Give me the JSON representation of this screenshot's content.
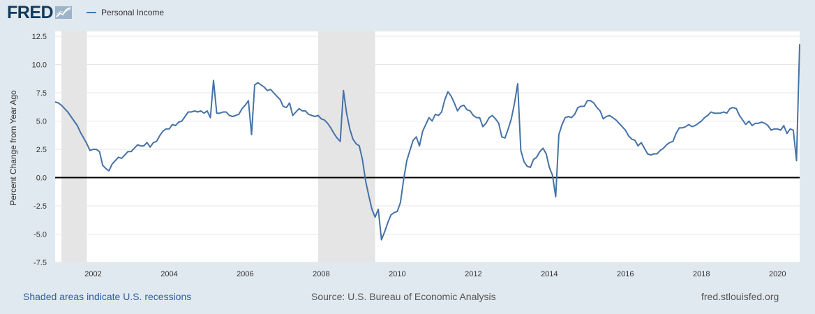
{
  "header": {
    "logo_text": "FRED",
    "logo_icon": "chart-line-icon",
    "legend_label": "Personal Income"
  },
  "footer": {
    "recessions_note": "Shaded areas indicate U.S. recessions",
    "source": "Source: U.S. Bureau of Economic Analysis",
    "site": "fred.stlouisfed.org"
  },
  "colors": {
    "background": "#e1e9f0",
    "plot_background": "#ffffff",
    "series_line": "#4572a7",
    "recession_shade": "#e5e5e5",
    "zero_line": "#000000",
    "gridline": "#e6e6e6"
  },
  "chart_data": {
    "type": "line",
    "title": "",
    "xlabel": "",
    "ylabel": "Percent Change from Year Ago",
    "ylim": [
      -7.5,
      12.5
    ],
    "y_ticks": [
      12.5,
      10.0,
      7.5,
      5.0,
      2.5,
      0.0,
      -2.5,
      -5.0,
      -7.5
    ],
    "y_tick_labels": [
      "12.5",
      "10.0",
      "7.5",
      "5.0",
      "2.5",
      "0.0",
      "-2.5",
      "-5.0",
      "-7.5"
    ],
    "x_range": [
      "2001-01",
      "2020-04"
    ],
    "x_tick_labels": [
      "2002",
      "2004",
      "2006",
      "2008",
      "2010",
      "2012",
      "2014",
      "2016",
      "2018",
      "2020"
    ],
    "grid": true,
    "legend": "top-left",
    "recessions": [
      {
        "start": "2001-03",
        "end": "2001-11"
      },
      {
        "start": "2007-12",
        "end": "2009-06"
      }
    ],
    "series": [
      {
        "name": "Personal Income",
        "points": [
          [
            "2001-01",
            6.7
          ],
          [
            "2001-02",
            6.6
          ],
          [
            "2001-03",
            6.4
          ],
          [
            "2001-04",
            6.1
          ],
          [
            "2001-05",
            5.8
          ],
          [
            "2001-06",
            5.4
          ],
          [
            "2001-07",
            5.0
          ],
          [
            "2001-08",
            4.6
          ],
          [
            "2001-09",
            4.0
          ],
          [
            "2001-10",
            3.5
          ],
          [
            "2001-11",
            3.0
          ],
          [
            "2001-12",
            2.4
          ],
          [
            "2002-01",
            2.5
          ],
          [
            "2002-02",
            2.5
          ],
          [
            "2002-03",
            2.3
          ],
          [
            "2002-04",
            1.1
          ],
          [
            "2002-05",
            0.8
          ],
          [
            "2002-06",
            0.6
          ],
          [
            "2002-07",
            1.2
          ],
          [
            "2002-08",
            1.5
          ],
          [
            "2002-09",
            1.8
          ],
          [
            "2002-10",
            1.7
          ],
          [
            "2002-11",
            2.0
          ],
          [
            "2002-12",
            2.3
          ],
          [
            "2003-01",
            2.3
          ],
          [
            "2003-02",
            2.6
          ],
          [
            "2003-03",
            2.9
          ],
          [
            "2003-04",
            2.8
          ],
          [
            "2003-05",
            2.8
          ],
          [
            "2003-06",
            3.1
          ],
          [
            "2003-07",
            2.7
          ],
          [
            "2003-08",
            3.1
          ],
          [
            "2003-09",
            3.2
          ],
          [
            "2003-10",
            3.7
          ],
          [
            "2003-11",
            4.1
          ],
          [
            "2003-12",
            4.3
          ],
          [
            "2004-01",
            4.3
          ],
          [
            "2004-02",
            4.7
          ],
          [
            "2004-03",
            4.6
          ],
          [
            "2004-04",
            4.9
          ],
          [
            "2004-05",
            5.0
          ],
          [
            "2004-06",
            5.4
          ],
          [
            "2004-07",
            5.8
          ],
          [
            "2004-08",
            5.8
          ],
          [
            "2004-09",
            5.9
          ],
          [
            "2004-10",
            5.8
          ],
          [
            "2004-11",
            5.9
          ],
          [
            "2004-12",
            5.7
          ],
          [
            "2005-01",
            5.9
          ],
          [
            "2005-02",
            5.3
          ],
          [
            "2005-03",
            8.6
          ],
          [
            "2005-04",
            5.7
          ],
          [
            "2005-05",
            5.7
          ],
          [
            "2005-06",
            5.8
          ],
          [
            "2005-07",
            5.8
          ],
          [
            "2005-08",
            5.5
          ],
          [
            "2005-09",
            5.4
          ],
          [
            "2005-10",
            5.5
          ],
          [
            "2005-11",
            5.6
          ],
          [
            "2005-12",
            6.1
          ],
          [
            "2006-01",
            6.4
          ],
          [
            "2006-02",
            6.8
          ],
          [
            "2006-03",
            3.8
          ],
          [
            "2006-04",
            8.2
          ],
          [
            "2006-05",
            8.4
          ],
          [
            "2006-06",
            8.2
          ],
          [
            "2006-07",
            8.0
          ],
          [
            "2006-08",
            7.7
          ],
          [
            "2006-09",
            7.8
          ],
          [
            "2006-10",
            7.5
          ],
          [
            "2006-11",
            7.2
          ],
          [
            "2006-12",
            6.9
          ],
          [
            "2007-01",
            6.3
          ],
          [
            "2007-02",
            6.2
          ],
          [
            "2007-03",
            6.6
          ],
          [
            "2007-04",
            5.5
          ],
          [
            "2007-05",
            5.8
          ],
          [
            "2007-06",
            6.1
          ],
          [
            "2007-07",
            5.9
          ],
          [
            "2007-08",
            5.9
          ],
          [
            "2007-09",
            5.6
          ],
          [
            "2007-10",
            5.5
          ],
          [
            "2007-11",
            5.4
          ],
          [
            "2007-12",
            5.5
          ],
          [
            "2008-01",
            5.2
          ],
          [
            "2008-02",
            5.1
          ],
          [
            "2008-03",
            4.8
          ],
          [
            "2008-04",
            4.4
          ],
          [
            "2008-05",
            3.9
          ],
          [
            "2008-06",
            3.5
          ],
          [
            "2008-07",
            3.2
          ],
          [
            "2008-08",
            7.7
          ],
          [
            "2008-09",
            5.7
          ],
          [
            "2008-10",
            4.3
          ],
          [
            "2008-11",
            3.4
          ],
          [
            "2008-12",
            3.0
          ],
          [
            "2009-01",
            2.8
          ],
          [
            "2009-02",
            1.6
          ],
          [
            "2009-03",
            -0.3
          ],
          [
            "2009-04",
            -1.6
          ],
          [
            "2009-05",
            -2.8
          ],
          [
            "2009-06",
            -3.5
          ],
          [
            "2009-07",
            -2.8
          ],
          [
            "2009-08",
            -5.5
          ],
          [
            "2009-09",
            -4.8
          ],
          [
            "2009-10",
            -4.0
          ],
          [
            "2009-11",
            -3.3
          ],
          [
            "2009-12",
            -3.1
          ],
          [
            "2010-01",
            -3.0
          ],
          [
            "2010-02",
            -2.2
          ],
          [
            "2010-03",
            -0.2
          ],
          [
            "2010-04",
            1.5
          ],
          [
            "2010-05",
            2.4
          ],
          [
            "2010-06",
            3.3
          ],
          [
            "2010-07",
            3.6
          ],
          [
            "2010-08",
            2.8
          ],
          [
            "2010-09",
            4.1
          ],
          [
            "2010-10",
            4.7
          ],
          [
            "2010-11",
            5.3
          ],
          [
            "2010-12",
            5.0
          ],
          [
            "2011-01",
            5.6
          ],
          [
            "2011-02",
            5.5
          ],
          [
            "2011-03",
            5.8
          ],
          [
            "2011-04",
            6.9
          ],
          [
            "2011-05",
            7.6
          ],
          [
            "2011-06",
            7.2
          ],
          [
            "2011-07",
            6.6
          ],
          [
            "2011-08",
            5.9
          ],
          [
            "2011-09",
            6.3
          ],
          [
            "2011-10",
            6.4
          ],
          [
            "2011-11",
            6.0
          ],
          [
            "2011-12",
            5.9
          ],
          [
            "2012-01",
            5.5
          ],
          [
            "2012-02",
            5.3
          ],
          [
            "2012-03",
            5.3
          ],
          [
            "2012-04",
            4.5
          ],
          [
            "2012-05",
            4.8
          ],
          [
            "2012-06",
            5.3
          ],
          [
            "2012-07",
            5.5
          ],
          [
            "2012-08",
            5.2
          ],
          [
            "2012-09",
            4.8
          ],
          [
            "2012-10",
            3.6
          ],
          [
            "2012-11",
            3.5
          ],
          [
            "2012-12",
            4.3
          ],
          [
            "2013-01",
            5.2
          ],
          [
            "2013-02",
            6.6
          ],
          [
            "2013-03",
            8.3
          ],
          [
            "2013-04",
            2.4
          ],
          [
            "2013-05",
            1.4
          ],
          [
            "2013-06",
            1.0
          ],
          [
            "2013-07",
            0.9
          ],
          [
            "2013-08",
            1.6
          ],
          [
            "2013-09",
            1.8
          ],
          [
            "2013-10",
            2.3
          ],
          [
            "2013-11",
            2.6
          ],
          [
            "2013-12",
            2.1
          ],
          [
            "2014-01",
            0.9
          ],
          [
            "2014-02",
            0.2
          ],
          [
            "2014-03",
            -1.7
          ],
          [
            "2014-04",
            3.8
          ],
          [
            "2014-05",
            4.7
          ],
          [
            "2014-06",
            5.3
          ],
          [
            "2014-07",
            5.4
          ],
          [
            "2014-08",
            5.3
          ],
          [
            "2014-09",
            5.6
          ],
          [
            "2014-10",
            6.2
          ],
          [
            "2014-11",
            6.3
          ],
          [
            "2014-12",
            6.3
          ],
          [
            "2015-01",
            6.8
          ],
          [
            "2015-02",
            6.8
          ],
          [
            "2015-03",
            6.6
          ],
          [
            "2015-04",
            6.2
          ],
          [
            "2015-05",
            5.9
          ],
          [
            "2015-06",
            5.2
          ],
          [
            "2015-07",
            5.4
          ],
          [
            "2015-08",
            5.5
          ],
          [
            "2015-09",
            5.3
          ],
          [
            "2015-10",
            5.1
          ],
          [
            "2015-11",
            4.8
          ],
          [
            "2015-12",
            4.5
          ],
          [
            "2016-01",
            4.2
          ],
          [
            "2016-02",
            3.7
          ],
          [
            "2016-03",
            3.4
          ],
          [
            "2016-04",
            3.3
          ],
          [
            "2016-05",
            2.8
          ],
          [
            "2016-06",
            3.1
          ],
          [
            "2016-07",
            2.6
          ],
          [
            "2016-08",
            2.1
          ],
          [
            "2016-09",
            2.0
          ],
          [
            "2016-10",
            2.1
          ],
          [
            "2016-11",
            2.1
          ],
          [
            "2016-12",
            2.4
          ],
          [
            "2017-01",
            2.6
          ],
          [
            "2017-02",
            2.9
          ],
          [
            "2017-03",
            3.1
          ],
          [
            "2017-04",
            3.2
          ],
          [
            "2017-05",
            3.9
          ],
          [
            "2017-06",
            4.4
          ],
          [
            "2017-07",
            4.4
          ],
          [
            "2017-08",
            4.5
          ],
          [
            "2017-09",
            4.7
          ],
          [
            "2017-10",
            4.5
          ],
          [
            "2017-11",
            4.6
          ],
          [
            "2017-12",
            4.8
          ],
          [
            "2018-01",
            5.0
          ],
          [
            "2018-02",
            5.3
          ],
          [
            "2018-03",
            5.5
          ],
          [
            "2018-04",
            5.8
          ],
          [
            "2018-05",
            5.7
          ],
          [
            "2018-06",
            5.7
          ],
          [
            "2018-07",
            5.7
          ],
          [
            "2018-08",
            5.8
          ],
          [
            "2018-09",
            5.7
          ],
          [
            "2018-10",
            6.1
          ],
          [
            "2018-11",
            6.2
          ],
          [
            "2018-12",
            6.1
          ],
          [
            "2019-01",
            5.5
          ],
          [
            "2019-02",
            5.1
          ],
          [
            "2019-03",
            4.7
          ],
          [
            "2019-04",
            5.0
          ],
          [
            "2019-05",
            4.6
          ],
          [
            "2019-06",
            4.8
          ],
          [
            "2019-07",
            4.8
          ],
          [
            "2019-08",
            4.9
          ],
          [
            "2019-09",
            4.8
          ],
          [
            "2019-10",
            4.6
          ],
          [
            "2019-11",
            4.2
          ],
          [
            "2019-12",
            4.3
          ],
          [
            "2020-01",
            4.3
          ],
          [
            "2020-02",
            4.2
          ],
          [
            "2020-03",
            4.6
          ],
          [
            "2020-04",
            3.9
          ],
          [
            "2020-05",
            4.3
          ],
          [
            "2020-06",
            4.2
          ],
          [
            "2020-07",
            1.5
          ],
          [
            "2020-08",
            11.8
          ]
        ]
      }
    ]
  }
}
